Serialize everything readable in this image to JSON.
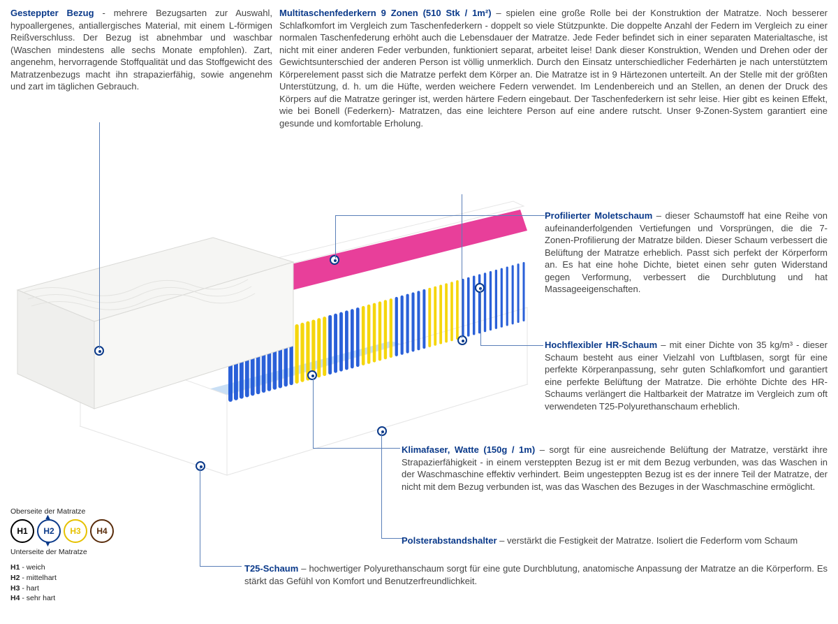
{
  "sections": {
    "bezug": {
      "title": "Gesteppter Bezug",
      "text": " - mehrere Bezugsarten zur Auswahl, hypoallergenes, antiallergisches Material, mit einem L-förmigen Reißverschluss. Der Bezug ist abnehmbar und waschbar (Waschen mindestens alle sechs Monate empfohlen). Zart, angenehm, hervorragende Stoffqualität und das Stoffgewicht des Matratzenbezugs macht ihn strapazierfähig, sowie angenehm und zart im täglichen Gebrauch."
    },
    "federkern": {
      "title": "Multitaschenfederkern 9 Zonen (510 Stk / 1m²)",
      "text": " – spielen eine große Rolle bei der Konstruktion der Matratze. Noch besserer Schlafkomfort im Vergleich zum Taschenfederkern - doppelt so viele Stützpunkte. Die doppelte Anzahl der Federn im Vergleich zu einer normalen Taschenfederung erhöht auch die Lebensdauer der Matratze. Jede Feder befindet sich in einer separaten Materialtasche, ist nicht mit einer anderen Feder verbunden, funktioniert separat, arbeitet leise! Dank dieser Konstruktion, Wenden und Drehen oder der Gewichtsunterschied der anderen Person ist völlig unmerklich. Durch den Einsatz unterschiedlicher Federhärten je nach unterstütztem Körperelement passt sich die Matratze perfekt dem Körper an. Die Matratze ist in 9 Härtezonen unterteilt. An der Stelle mit der größten Unterstützung, d. h. um die Hüfte, werden weichere Federn verwendet. Im Lendenbereich und an Stellen, an denen der Druck des Körpers auf die Matratze geringer ist, werden härtere Federn eingebaut. Der Taschenfederkern ist sehr leise. Hier gibt es keinen Effekt, wie bei Bonell (Federkern)- Matratzen, das eine leichtere Person auf eine andere rutscht. Unser 9-Zonen-System garantiert eine gesunde und komfortable Erholung."
    },
    "moletschaum": {
      "title": "Profilierter Moletschaum",
      "text": " – dieser Schaumstoff hat eine Reihe von aufeinanderfolgenden Vertiefungen und Vorsprüngen, die die 7-Zonen-Profilierung der Matratze bilden. Dieser Schaum verbessert die Belüftung der Matratze erheblich. Passt sich perfekt der Körperform an. Es hat eine hohe Dichte, bietet einen sehr guten Widerstand gegen Verformung, verbessert die Durchblutung und hat Massageeigenschaften."
    },
    "hrschaum": {
      "title": "Hochflexibler HR-Schaum",
      "text": " – mit einer Dichte von 35 kg/m³ - dieser Schaum besteht aus einer Vielzahl von Luftblasen, sorgt für eine perfekte Körperanpassung, sehr guten Schlafkomfort und garantiert eine perfekte Belüftung der Matratze. Die erhöhte Dichte des HR-Schaums verlängert die Haltbarkeit der Matratze im Vergleich zum oft verwendeten T25-Polyurethanschaum erheblich."
    },
    "klimafaser": {
      "title": "Klimafaser, Watte (150g / 1m)",
      "text": " – sorgt für eine ausreichende Belüftung der Matratze, verstärkt ihre Strapazierfähigkeit - in einem versteppten Bezug ist er mit dem Bezug verbunden, was das Waschen in der Waschmaschine effektiv verhindert. Beim ungesteppten Bezug ist es der innere Teil der Matratze, der nicht mit dem Bezug verbunden ist, was das Waschen des Bezuges in der Waschmaschine ermöglicht."
    },
    "polster": {
      "title": "Polsterabstandshalter",
      "text": " – verstärkt die Festigkeit der Matratze. Isoliert die Federform vom Schaum"
    },
    "t25": {
      "title": "T25-Schaum",
      "text": " – hochwertiger Polyurethanschaum sorgt für eine gute Durchblutung, anatomische Anpassung der Matratze an die Körperform. Es stärkt das Gefühl von Komfort und Benutzerfreundlichkeit."
    }
  },
  "legend": {
    "top_label": "Oberseite der Matratze",
    "bottom_label": "Unterseite der Matratze",
    "levels": [
      {
        "code": "H1",
        "color": "#000000",
        "def": "weich"
      },
      {
        "code": "H2",
        "color": "#0b3a8a",
        "def": "mittelhart"
      },
      {
        "code": "H3",
        "color": "#e6c100",
        "def": "hart"
      },
      {
        "code": "H4",
        "color": "#5a2d0c",
        "def": "sehr hart"
      }
    ]
  },
  "mattress": {
    "cover_color": "#f2f2f0",
    "cover_stroke": "#d9d9d6",
    "case_color": "#ffffff",
    "case_stroke": "#dcdcdc",
    "underlayer_color": "#c9dff5",
    "foam_color": "#e83f9a",
    "foam_shadow": "#c22c7e",
    "spring_colors": {
      "blue": "#1f57d6",
      "yellow": "#f4d400"
    },
    "spring_zones": [
      "blue",
      "blue",
      "yellow",
      "blue",
      "yellow",
      "blue",
      "yellow",
      "blue",
      "blue"
    ]
  },
  "colors": {
    "heading": "#0b3a8a",
    "body": "#444444",
    "marker": "#0b3a8a",
    "leader": "#5a7fb8",
    "background": "#ffffff"
  }
}
